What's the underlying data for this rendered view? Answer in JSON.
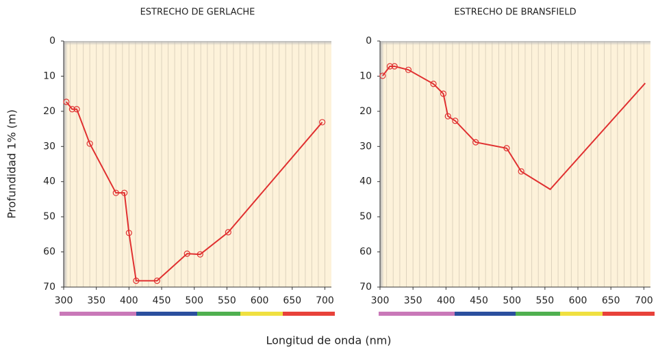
{
  "xlabel": "Longitud de onda (nm)",
  "ylabel": "Profundidad  1%  (m)",
  "chart_data": [
    {
      "type": "line",
      "title": "ESTRECHO DE GERLACHE",
      "xlim": [
        300,
        710
      ],
      "xticks": [
        300,
        350,
        400,
        450,
        500,
        550,
        600,
        650,
        700
      ],
      "ylim": [
        0,
        70
      ],
      "yticks": [
        0,
        10,
        20,
        30,
        40,
        50,
        60,
        70
      ],
      "y_inverted": true,
      "xgrid_step": 10,
      "series": [
        {
          "color": "#e03030",
          "x": [
            304,
            313,
            320,
            340,
            380,
            393,
            400,
            411,
            443,
            489,
            509,
            552,
            696
          ],
          "values": [
            17.3,
            19.4,
            19.4,
            29.2,
            43.2,
            43.2,
            54.6,
            68.2,
            68.2,
            60.5,
            60.7,
            54.4,
            23.1
          ],
          "markers": [
            true,
            true,
            true,
            true,
            true,
            true,
            true,
            true,
            true,
            true,
            true,
            true,
            true
          ]
        }
      ]
    },
    {
      "type": "line",
      "title": "ESTRECHO DE BRANSFIELD",
      "xlim": [
        300,
        710
      ],
      "xticks": [
        300,
        350,
        400,
        450,
        500,
        550,
        600,
        650,
        700
      ],
      "ylim": [
        0,
        70
      ],
      "yticks": [
        0,
        10,
        20,
        30,
        40,
        50,
        60,
        70
      ],
      "y_inverted": true,
      "xgrid_step": 10,
      "series": [
        {
          "color": "#e03030",
          "x": [
            304,
            315,
            322,
            343,
            381,
            396,
            403,
            414,
            445,
            492,
            514,
            558,
            702
          ],
          "values": [
            9.9,
            7.2,
            7.2,
            8.2,
            12.2,
            15.0,
            21.4,
            22.7,
            28.8,
            30.5,
            37.1,
            42.2,
            12.0
          ],
          "markers": [
            true,
            true,
            true,
            true,
            true,
            true,
            true,
            true,
            true,
            true,
            true,
            false,
            false
          ]
        }
      ]
    }
  ]
}
